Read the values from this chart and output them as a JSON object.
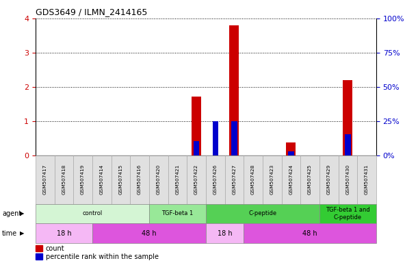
{
  "title": "GDS3649 / ILMN_2414165",
  "samples": [
    "GSM507417",
    "GSM507418",
    "GSM507419",
    "GSM507414",
    "GSM507415",
    "GSM507416",
    "GSM507420",
    "GSM507421",
    "GSM507422",
    "GSM507426",
    "GSM507427",
    "GSM507428",
    "GSM507423",
    "GSM507424",
    "GSM507425",
    "GSM507429",
    "GSM507430",
    "GSM507431"
  ],
  "count_values": [
    0,
    0,
    0,
    0,
    0,
    0,
    0,
    0,
    1.72,
    0,
    3.8,
    0,
    0,
    0.38,
    0,
    0,
    2.2,
    0
  ],
  "percentile_values_pct": [
    0,
    0,
    0,
    0,
    0,
    0,
    0,
    0,
    10.5,
    25.0,
    25.0,
    0,
    0,
    3.0,
    0,
    0,
    15.5,
    0
  ],
  "ylim_left": [
    0,
    4
  ],
  "ylim_right": [
    0,
    100
  ],
  "yticks_left": [
    0,
    1,
    2,
    3,
    4
  ],
  "yticks_right": [
    0,
    25,
    50,
    75,
    100
  ],
  "agent_groups": [
    {
      "label": "control",
      "start": 0,
      "end": 6,
      "color": "#d4f5d4"
    },
    {
      "label": "TGF-beta 1",
      "start": 6,
      "end": 9,
      "color": "#98e898"
    },
    {
      "label": "C-peptide",
      "start": 9,
      "end": 15,
      "color": "#55d055"
    },
    {
      "label": "TGF-beta 1 and\nC-peptide",
      "start": 15,
      "end": 18,
      "color": "#33cc33"
    }
  ],
  "time_groups": [
    {
      "label": "18 h",
      "start": 0,
      "end": 3,
      "color": "#f5b8f5"
    },
    {
      "label": "48 h",
      "start": 3,
      "end": 9,
      "color": "#dd55dd"
    },
    {
      "label": "18 h",
      "start": 9,
      "end": 11,
      "color": "#f5b8f5"
    },
    {
      "label": "48 h",
      "start": 11,
      "end": 18,
      "color": "#dd55dd"
    }
  ],
  "bar_color_count": "#cc0000",
  "bar_color_percentile": "#0000cc",
  "bar_width": 0.5,
  "percentile_bar_width": 0.3,
  "tick_label_color_left": "#cc0000",
  "tick_label_color_right": "#0000cc",
  "legend_count_color": "#cc0000",
  "legend_percentile_color": "#0000cc",
  "sample_box_color": "#e0e0e0"
}
